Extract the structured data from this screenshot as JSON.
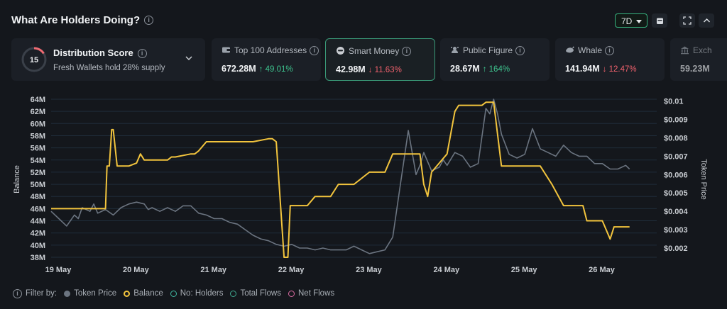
{
  "header": {
    "title": "What Are Holders Doing?",
    "range_label": "7D"
  },
  "distribution": {
    "title": "Distribution Score",
    "score": "15",
    "subtitle": "Fresh Wallets hold 28% supply"
  },
  "cards": [
    {
      "label": "Top 100 Addresses",
      "value": "672.28M",
      "change": "49.01%",
      "direction": "up",
      "icon": "wallet-icon"
    },
    {
      "label": "Smart Money",
      "value": "42.98M",
      "change": "11.63%",
      "direction": "down",
      "icon": "smart-money-icon"
    },
    {
      "label": "Public Figure",
      "value": "28.67M",
      "change": "164%",
      "direction": "up",
      "icon": "public-figure-icon"
    },
    {
      "label": "Whale",
      "value": "141.94M",
      "change": "12.47%",
      "direction": "down",
      "icon": "whale-icon"
    },
    {
      "label": "Exch",
      "value": "59.23M",
      "change": "",
      "direction": "",
      "icon": "exchange-icon"
    }
  ],
  "legend": {
    "filter_label": "Filter by:",
    "items": [
      {
        "label": "Token Price",
        "color": "#6b7480",
        "style": "filled"
      },
      {
        "label": "Balance",
        "color": "#f2c43d",
        "style": "ring"
      },
      {
        "label": "No: Holders",
        "color": "#3fb8a0",
        "style": "ring"
      },
      {
        "label": "Total Flows",
        "color": "#3fa98f",
        "style": "ring"
      },
      {
        "label": "Net Flows",
        "color": "#d96aa0",
        "style": "ring"
      }
    ]
  },
  "colors": {
    "accent_green": "#36b37e",
    "up": "#3ec48f",
    "down": "#f0616d",
    "balance": "#f2c43d",
    "price": "#6b7480"
  },
  "chart_data": {
    "type": "line",
    "xlabel": "",
    "ylabel": "Balance",
    "y2label": "Token Price",
    "x_ticks": [
      "19 May",
      "20 May",
      "21 May",
      "22 May",
      "23 May",
      "24 May",
      "25 May",
      "26 May"
    ],
    "y_ticks": [
      "64M",
      "62M",
      "60M",
      "58M",
      "56M",
      "54M",
      "52M",
      "50M",
      "48M",
      "46M",
      "44M",
      "42M",
      "40M",
      "38M"
    ],
    "y2_ticks": [
      "$0.01",
      "$0.009",
      "$0.008",
      "$0.007",
      "$0.006",
      "$0.005",
      "$0.004",
      "$0.003",
      "$0.002"
    ],
    "ylim": [
      38,
      64
    ],
    "y2lim": [
      0.0015,
      0.0101
    ],
    "xlim": [
      0,
      7.8
    ],
    "grid": true,
    "series": [
      {
        "name": "Balance",
        "axis": "left",
        "color": "#f2c43d",
        "x": [
          0,
          0.3,
          0.7,
          0.72,
          0.75,
          0.78,
          0.8,
          0.85,
          0.88,
          0.92,
          1.0,
          1.1,
          1.15,
          1.2,
          1.23,
          1.26,
          1.3,
          1.35,
          1.5,
          1.55,
          1.6,
          1.8,
          1.85,
          1.9,
          2.0,
          2.2,
          2.4,
          2.6,
          2.8,
          2.85,
          2.9,
          3.0,
          3.05,
          3.08,
          3.1,
          3.3,
          3.4,
          3.5,
          3.6,
          3.7,
          3.9,
          4.1,
          4.3,
          4.4,
          4.6,
          4.7,
          4.75,
          4.8,
          4.85,
          4.9,
          5.1,
          5.2,
          5.25,
          5.3,
          5.35,
          5.4,
          5.45,
          5.5,
          5.55,
          5.6,
          5.7,
          5.8,
          6.0,
          6.05,
          6.1,
          6.2,
          6.3,
          6.45,
          6.6,
          6.8,
          6.85,
          6.9,
          7.0,
          7.1,
          7.2,
          7.25,
          7.3,
          7.4,
          7.45
        ],
        "y": [
          46,
          46,
          46,
          53,
          53,
          59,
          59,
          53,
          53,
          53,
          53,
          53.5,
          55,
          54,
          54,
          54,
          54,
          54,
          54,
          54.5,
          54.5,
          55,
          55,
          55.5,
          57,
          57,
          57,
          57,
          57.5,
          57.5,
          57,
          38,
          38,
          46.5,
          46.5,
          46.5,
          48,
          48,
          48,
          50,
          50,
          52,
          52,
          55,
          55,
          55,
          55,
          50,
          48,
          52,
          55,
          62,
          63,
          63,
          63,
          63,
          63,
          63,
          63,
          63.5,
          63.5,
          53,
          53,
          53,
          53,
          53,
          53,
          50,
          46.5,
          46.5,
          46.5,
          44,
          44,
          44,
          41,
          43,
          43,
          43,
          43
        ],
        "y_note": "left axis, millions"
      },
      {
        "name": "Token Price",
        "axis": "right",
        "color": "#6b7480",
        "x": [
          0,
          0.1,
          0.2,
          0.3,
          0.35,
          0.4,
          0.5,
          0.55,
          0.6,
          0.7,
          0.8,
          0.9,
          1.0,
          1.1,
          1.2,
          1.25,
          1.3,
          1.4,
          1.5,
          1.6,
          1.7,
          1.8,
          1.9,
          2.0,
          2.1,
          2.2,
          2.3,
          2.4,
          2.5,
          2.6,
          2.7,
          2.8,
          2.9,
          3.0,
          3.1,
          3.2,
          3.3,
          3.4,
          3.5,
          3.6,
          3.7,
          3.8,
          3.9,
          4.0,
          4.1,
          4.2,
          4.3,
          4.4,
          4.5,
          4.6,
          4.7,
          4.75,
          4.8,
          4.85,
          4.9,
          5.0,
          5.05,
          5.1,
          5.2,
          5.3,
          5.4,
          5.5,
          5.6,
          5.65,
          5.7,
          5.75,
          5.8,
          5.9,
          6.0,
          6.1,
          6.2,
          6.3,
          6.4,
          6.5,
          6.6,
          6.7,
          6.8,
          6.9,
          7.0,
          7.1,
          7.2,
          7.3,
          7.4,
          7.45
        ],
        "y": [
          0.004,
          0.0036,
          0.0032,
          0.0038,
          0.0036,
          0.0042,
          0.004,
          0.0044,
          0.0039,
          0.0041,
          0.0038,
          0.0042,
          0.0044,
          0.0045,
          0.0044,
          0.0041,
          0.0042,
          0.004,
          0.0042,
          0.004,
          0.0043,
          0.0043,
          0.0039,
          0.0038,
          0.0036,
          0.0036,
          0.0034,
          0.0033,
          0.003,
          0.0027,
          0.0025,
          0.0024,
          0.0022,
          0.0021,
          0.0022,
          0.002,
          0.002,
          0.0019,
          0.002,
          0.0019,
          0.0019,
          0.0019,
          0.0021,
          0.0019,
          0.0017,
          0.0018,
          0.0019,
          0.0026,
          0.0055,
          0.0084,
          0.006,
          0.0065,
          0.0072,
          0.0067,
          0.0062,
          0.0064,
          0.0068,
          0.0065,
          0.0072,
          0.007,
          0.0064,
          0.0066,
          0.0096,
          0.0093,
          0.0101,
          0.0093,
          0.0082,
          0.0071,
          0.0069,
          0.0071,
          0.0085,
          0.0074,
          0.0072,
          0.007,
          0.0076,
          0.0072,
          0.007,
          0.007,
          0.0066,
          0.0066,
          0.0063,
          0.0063,
          0.0065,
          0.0063
        ],
        "y_note": "right axis, USD"
      }
    ]
  }
}
